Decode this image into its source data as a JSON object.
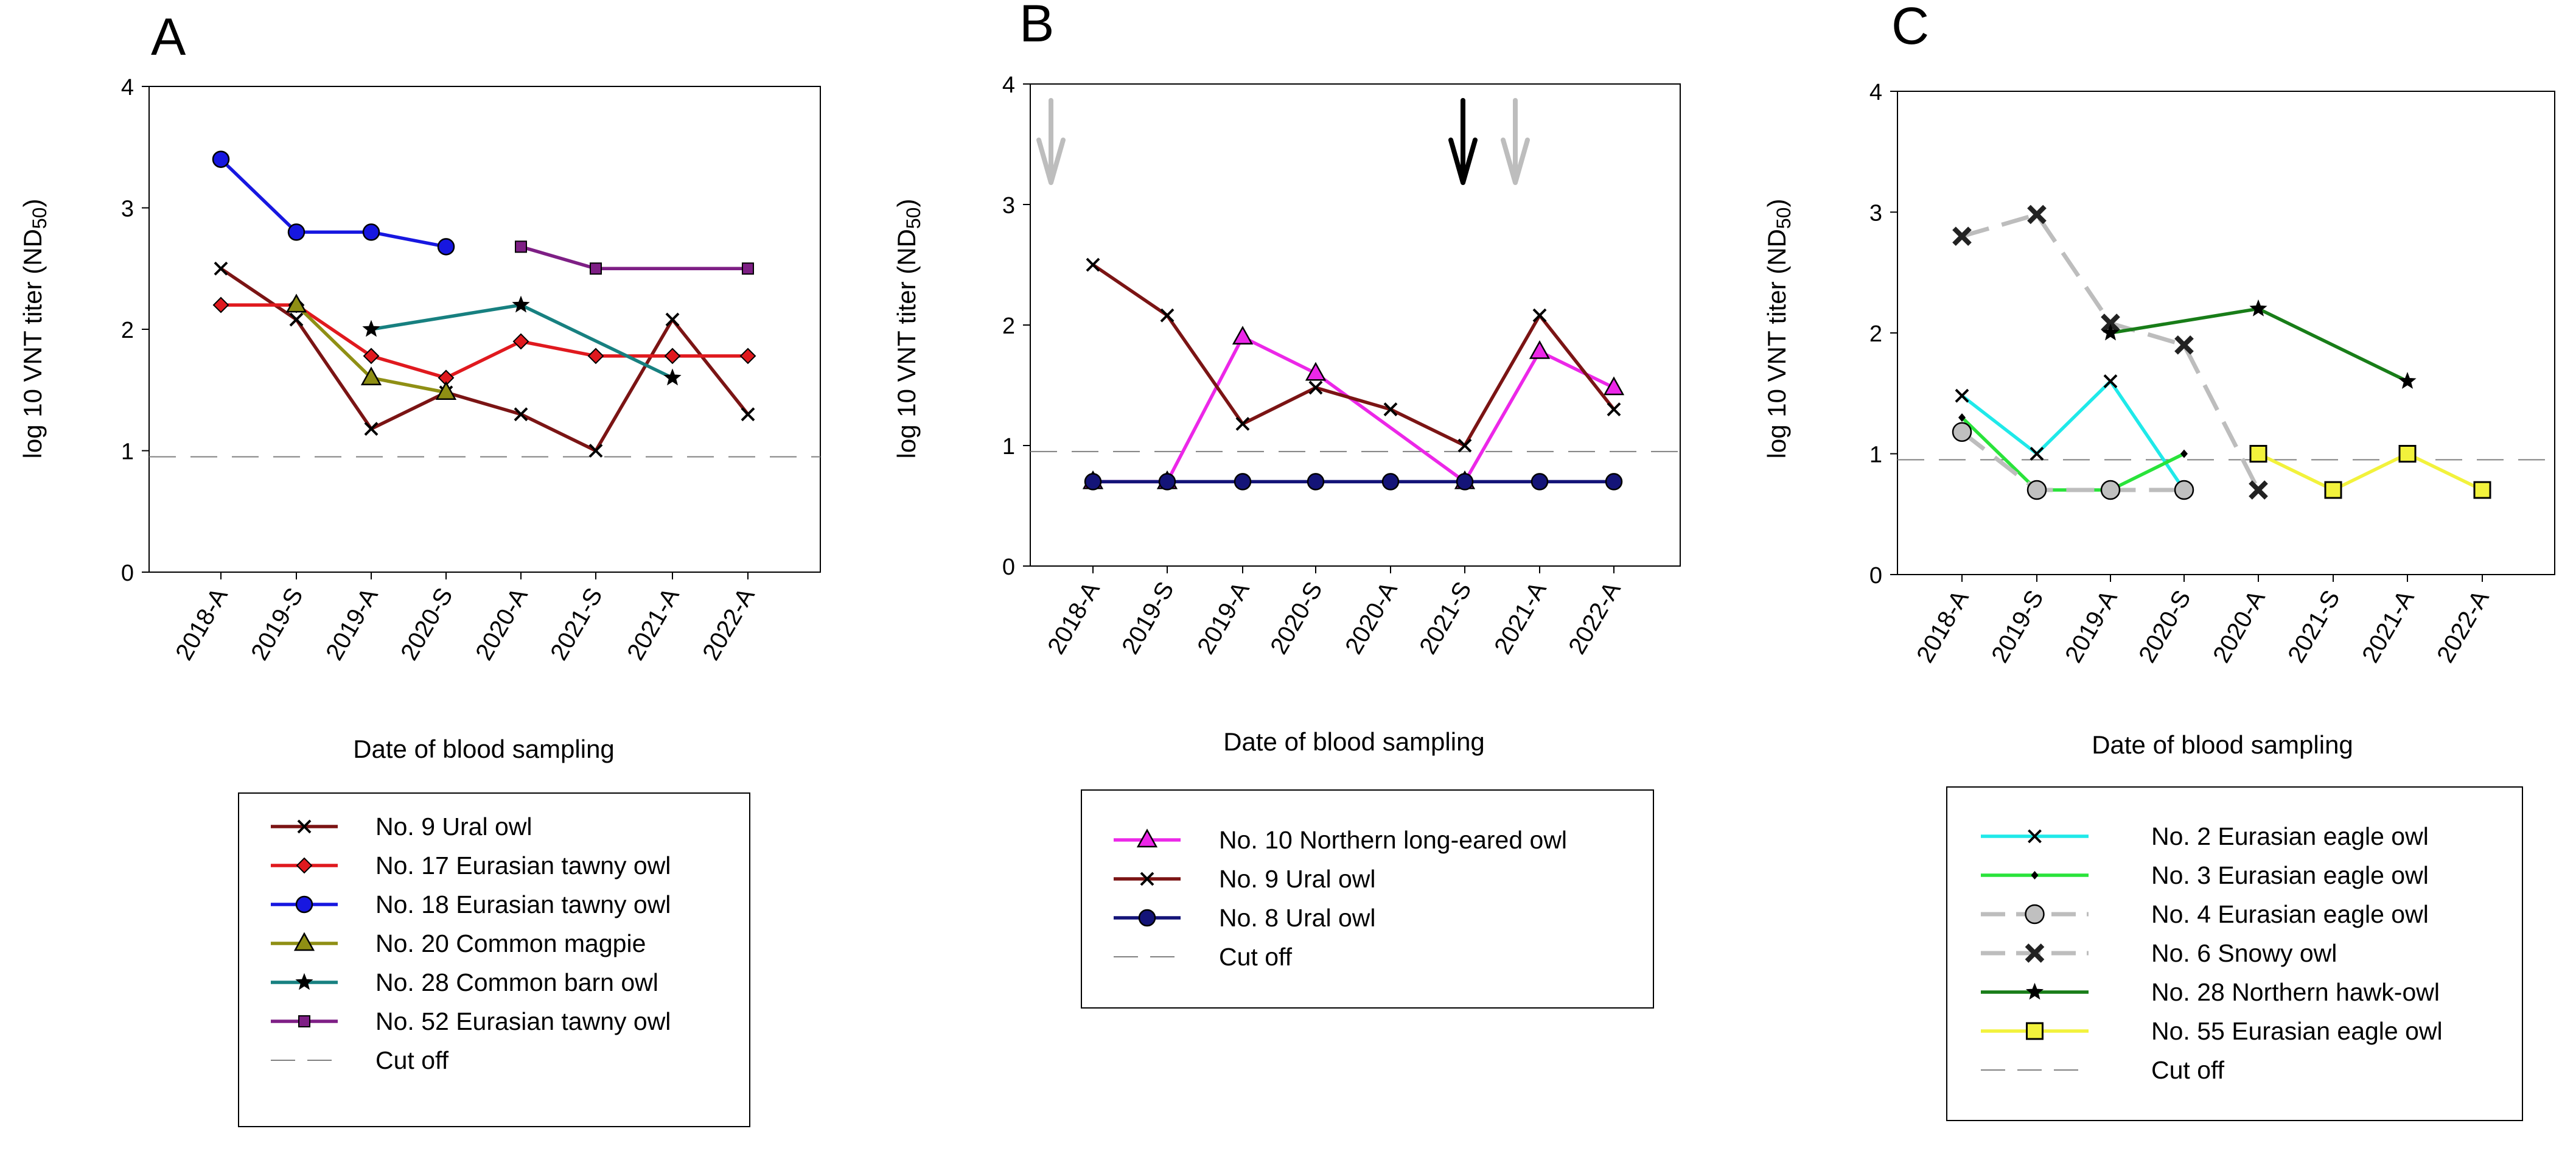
{
  "colors": {
    "dark_red": "#7B1414",
    "red": "#E0191E",
    "blue": "#1717E0",
    "olive": "#8F8F14",
    "teal": "#178080",
    "purple": "#7E1F85",
    "magenta": "#EC27E8",
    "navy": "#141478",
    "cyan": "#1FE9E9",
    "green": "#29E33A",
    "gray": "#BDBDBD",
    "dark_green": "#187D18",
    "yellow": "#F2F23C",
    "cutoff": "#808080"
  },
  "chart_data": [
    {
      "panel": "A",
      "type": "line",
      "ylabel": "log 10 VNT titer (ND50)",
      "xlabel": "Date of blood sampling",
      "categories": [
        "2018-A",
        "2019-S",
        "2019-A",
        "2020-S",
        "2020-A",
        "2021-S",
        "2021-A",
        "2022-A"
      ],
      "yticks": [
        "0",
        "1",
        "2",
        "3",
        "4"
      ],
      "ylim": [
        0,
        4
      ],
      "cutoff": 0.95,
      "cutoff_label": "Cut off",
      "series": [
        {
          "name": "No. 9 Ural owl",
          "color": "dark_red",
          "marker": "x",
          "values": [
            2.5,
            2.08,
            1.18,
            1.48,
            1.3,
            1.0,
            2.08,
            1.3
          ]
        },
        {
          "name": "No. 17 Eurasian tawny owl",
          "color": "red",
          "marker": "diamond",
          "values": [
            2.2,
            2.2,
            1.78,
            1.6,
            1.9,
            1.78,
            1.78,
            1.78
          ]
        },
        {
          "name": "No. 18 Eurasian tawny owl",
          "color": "blue",
          "marker": "circle",
          "values": [
            3.4,
            2.8,
            2.8,
            2.68,
            null,
            null,
            null,
            null
          ]
        },
        {
          "name": "No. 20 Common magpie",
          "color": "olive",
          "marker": "triangle",
          "values": [
            null,
            2.2,
            1.6,
            1.48,
            null,
            null,
            null,
            null
          ]
        },
        {
          "name": "No. 28 Common barn owl",
          "color": "teal",
          "marker": "star",
          "values": [
            null,
            null,
            2.0,
            null,
            2.2,
            null,
            1.6,
            null
          ]
        },
        {
          "name": "No. 52 Eurasian tawny owl",
          "color": "purple",
          "marker": "square",
          "values": [
            null,
            null,
            null,
            null,
            2.68,
            2.5,
            null,
            2.5
          ]
        }
      ]
    },
    {
      "panel": "B",
      "type": "line",
      "ylabel": "log 10 VNT titer (ND50)",
      "xlabel": "Date of blood sampling",
      "categories": [
        "2018-A",
        "2019-S",
        "2019-A",
        "2020-S",
        "2020-A",
        "2021-S",
        "2021-A",
        "2022-A"
      ],
      "yticks": [
        "0",
        "1",
        "2",
        "3",
        "4"
      ],
      "ylim": [
        0,
        4
      ],
      "cutoff": 0.95,
      "cutoff_label": "Cut off",
      "series": [
        {
          "name": "No. 10 Northern long-eared owl",
          "color": "magenta",
          "marker": "triangle",
          "values": [
            0.7,
            0.7,
            1.9,
            1.6,
            null,
            0.7,
            1.78,
            1.48
          ]
        },
        {
          "name": "No. 9 Ural owl",
          "color": "dark_red",
          "marker": "x",
          "values": [
            2.5,
            2.08,
            1.18,
            1.48,
            1.3,
            1.0,
            2.08,
            1.3
          ]
        },
        {
          "name": "No. 8 Ural owl",
          "color": "navy",
          "marker": "circle",
          "values": [
            0.7,
            0.7,
            0.7,
            0.7,
            0.7,
            0.7,
            0.7,
            0.7
          ]
        }
      ],
      "annotations": [
        "gray down arrow left of 2018-A",
        "black down arrow at 2021-S",
        "gray down arrow right of 2021-S"
      ]
    },
    {
      "panel": "C",
      "type": "line",
      "ylabel": "log 10 VNT titer (ND50)",
      "xlabel": "Date of blood sampling",
      "categories": [
        "2018-A",
        "2019-S",
        "2019-A",
        "2020-S",
        "2020-A",
        "2021-S",
        "2021-A",
        "2022-A"
      ],
      "yticks": [
        "0",
        "1",
        "2",
        "3",
        "4"
      ],
      "ylim": [
        0,
        4
      ],
      "cutoff": 0.95,
      "cutoff_label": "Cut off",
      "series": [
        {
          "name": "No. 2 Eurasian eagle owl",
          "color": "cyan",
          "marker": "x",
          "values": [
            1.48,
            1.0,
            1.6,
            0.7,
            null,
            null,
            null,
            null
          ]
        },
        {
          "name": "No. 3 Eurasian eagle owl",
          "color": "green",
          "marker": "dot",
          "values": [
            1.3,
            0.7,
            0.7,
            1.0,
            null,
            null,
            null,
            null
          ]
        },
        {
          "name": "No. 4 Eurasian eagle owl",
          "color": "gray",
          "marker": "circle-gray",
          "dashed": true,
          "values": [
            1.18,
            0.7,
            0.7,
            0.7,
            null,
            null,
            null,
            null
          ]
        },
        {
          "name": "No. 6 Snowy owl",
          "color": "gray",
          "marker": "x-bold",
          "dashed": true,
          "values": [
            2.8,
            2.98,
            2.08,
            1.9,
            0.7,
            null,
            null,
            null
          ]
        },
        {
          "name": "No. 28 Northern hawk-owl",
          "color": "dark_green",
          "marker": "star",
          "values": [
            null,
            null,
            2.0,
            null,
            2.2,
            null,
            1.6,
            null
          ]
        },
        {
          "name": "No. 55 Eurasian eagle owl",
          "color": "yellow",
          "marker": "square-yellow",
          "values": [
            null,
            null,
            null,
            null,
            1.0,
            0.7,
            1.0,
            0.7
          ]
        }
      ]
    }
  ]
}
